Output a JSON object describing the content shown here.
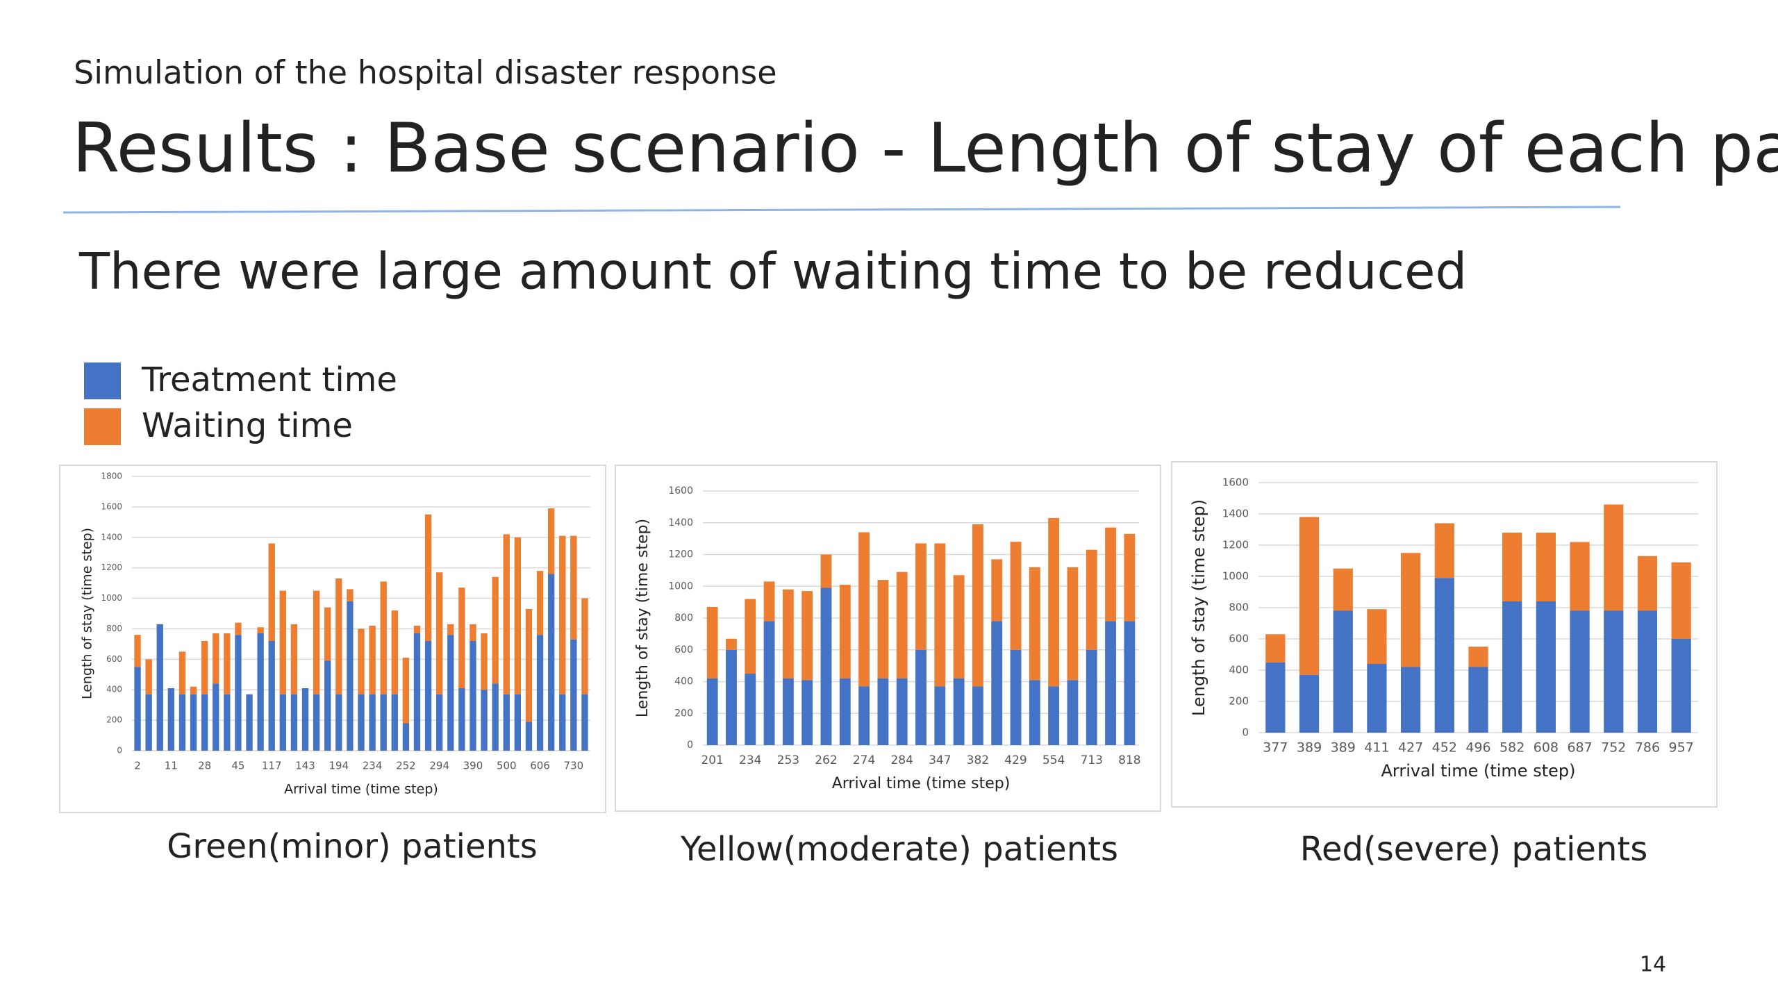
{
  "header": {
    "subtitle": "Simulation of the hospital disaster response",
    "title": "Results : Base scenario  - Length of stay of each patient"
  },
  "headline": "There were large amount of waiting time to be reduced",
  "legend": [
    {
      "name": "Treatment time",
      "color": "#4472c4"
    },
    {
      "name": "Waiting time",
      "color": "#ed7d31"
    }
  ],
  "chart_data": [
    {
      "type": "stacked_bar",
      "caption": "Green(minor) patients",
      "x_label": "Arrival time (time step)",
      "y_label": "Length of stay (time step)",
      "categories": [
        "2",
        null,
        null,
        "11",
        null,
        null,
        "28",
        null,
        null,
        "45",
        null,
        null,
        "117",
        null,
        null,
        "143",
        null,
        null,
        "194",
        null,
        null,
        "234",
        null,
        null,
        "252",
        null,
        null,
        "294",
        null,
        null,
        "390",
        null,
        null,
        "500",
        null,
        null,
        "606",
        null,
        null,
        "730",
        null
      ],
      "series": [
        {
          "values": [
            550,
            370,
            830,
            410,
            370,
            370,
            370,
            440,
            370,
            760,
            370,
            770,
            720,
            370,
            370,
            410,
            370,
            590,
            370,
            980,
            370,
            370,
            370,
            370,
            180,
            770,
            720,
            370,
            760,
            410,
            720,
            400,
            440,
            370,
            370,
            190,
            760,
            1160,
            370,
            730,
            370
          ]
        },
        {
          "values": [
            210,
            230,
            0,
            0,
            280,
            50,
            350,
            330,
            400,
            80,
            0,
            40,
            640,
            680,
            460,
            0,
            680,
            350,
            760,
            80,
            430,
            450,
            740,
            550,
            430,
            50,
            830,
            800,
            70,
            660,
            110,
            370,
            700,
            1050,
            1030,
            740,
            420,
            430,
            1040,
            680,
            630
          ]
        }
      ],
      "ylim": [
        0,
        1800
      ],
      "yticks": [
        0,
        200,
        400,
        600,
        800,
        1000,
        1200,
        1400,
        1600,
        1800
      ],
      "grid": true
    },
    {
      "type": "stacked_bar",
      "caption": "Yellow(moderate) patients",
      "x_label": "Arrival time (time step)",
      "y_label": "Length of stay (time step)",
      "categories": [
        "201",
        null,
        "234",
        null,
        "253",
        null,
        "262",
        null,
        "274",
        null,
        "284",
        null,
        "347",
        null,
        "382",
        null,
        "429",
        null,
        "554",
        null,
        "713",
        null,
        "818"
      ],
      "series": [
        {
          "values": [
            420,
            600,
            450,
            780,
            420,
            410,
            990,
            420,
            370,
            420,
            420,
            600,
            370,
            420,
            370,
            780,
            600,
            410,
            370,
            410,
            600,
            780,
            780
          ]
        },
        {
          "values": [
            450,
            70,
            470,
            250,
            560,
            560,
            210,
            590,
            970,
            620,
            670,
            670,
            900,
            650,
            1020,
            390,
            680,
            710,
            1060,
            710,
            630,
            590,
            550
          ]
        }
      ],
      "ylim": [
        0,
        1600
      ],
      "yticks": [
        0,
        200,
        400,
        600,
        800,
        1000,
        1200,
        1400,
        1600
      ],
      "grid": true
    },
    {
      "type": "stacked_bar",
      "caption": "Red(severe) patients",
      "x_label": "Arrival time (time step)",
      "y_label": "Length of stay (time step)",
      "categories": [
        "377",
        "389",
        "389",
        "411",
        "427",
        "452",
        "496",
        "582",
        "608",
        "687",
        "752",
        "786",
        "957"
      ],
      "series": [
        {
          "values": [
            450,
            370,
            780,
            440,
            420,
            990,
            420,
            840,
            840,
            780,
            780,
            780,
            600
          ]
        },
        {
          "values": [
            180,
            1010,
            270,
            350,
            730,
            350,
            130,
            440,
            440,
            440,
            680,
            350,
            490
          ]
        }
      ],
      "ylim": [
        0,
        1600
      ],
      "yticks": [
        0,
        200,
        400,
        600,
        800,
        1000,
        1200,
        1400,
        1600
      ],
      "grid": true
    }
  ],
  "page_number": 14
}
